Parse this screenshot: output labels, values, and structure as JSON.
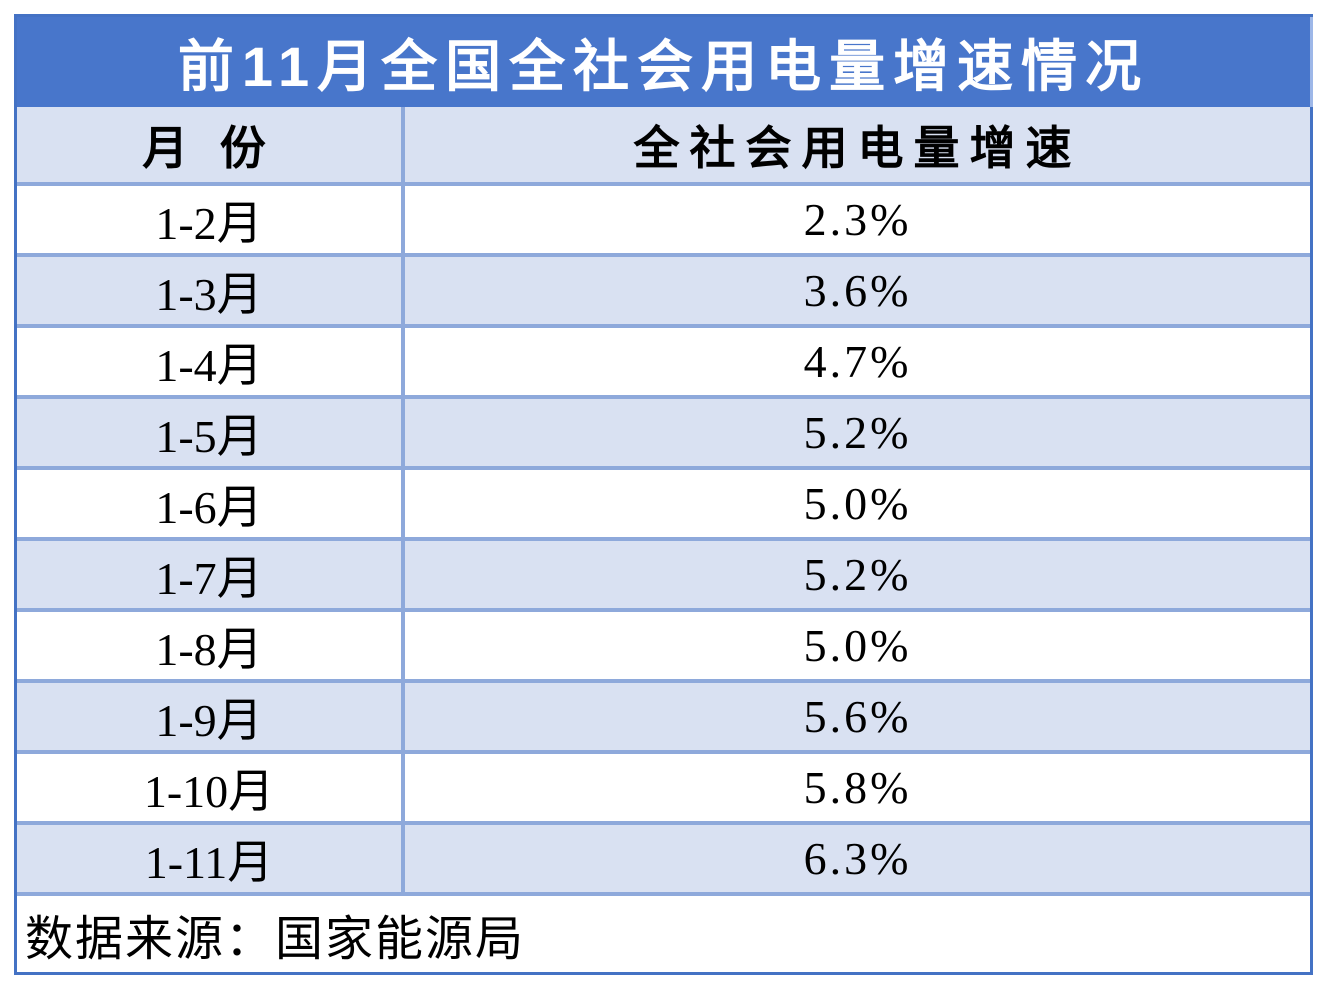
{
  "title": "前11月全国全社会用电量增速情况",
  "header": {
    "month_col": "月 份",
    "growth_col": "全社会用电量增速"
  },
  "rows": [
    {
      "month": "1-2月",
      "growth": "2.3%"
    },
    {
      "month": "1-3月",
      "growth": "3.6%"
    },
    {
      "month": "1-4月",
      "growth": "4.7%"
    },
    {
      "month": "1-5月",
      "growth": "5.2%"
    },
    {
      "month": "1-6月",
      "growth": "5.0%"
    },
    {
      "month": "1-7月",
      "growth": "5.2%"
    },
    {
      "month": "1-8月",
      "growth": "5.0%"
    },
    {
      "month": "1-9月",
      "growth": "5.6%"
    },
    {
      "month": "1-10月",
      "growth": "5.8%"
    },
    {
      "month": "1-11月",
      "growth": "6.3%"
    }
  ],
  "footer": {
    "source": "数据来源：国家能源局"
  },
  "colors": {
    "title_bg": "#4876CB",
    "title_text": "#FFFFFF",
    "shaded_row_bg": "#D9E1F2",
    "grid_line": "#8EA9DB",
    "outer_border": "#4472C4",
    "body_text": "#000000"
  },
  "chart_data": {
    "type": "table",
    "title": "前11月全国全社会用电量增速情况",
    "columns": [
      "月份",
      "全社会用电量增速"
    ],
    "categories": [
      "1-2月",
      "1-3月",
      "1-4月",
      "1-5月",
      "1-6月",
      "1-7月",
      "1-8月",
      "1-9月",
      "1-10月",
      "1-11月"
    ],
    "values": [
      2.3,
      3.6,
      4.7,
      5.2,
      5.0,
      5.2,
      5.0,
      5.6,
      5.8,
      6.3
    ],
    "unit": "%",
    "source": "数据来源：国家能源局"
  }
}
